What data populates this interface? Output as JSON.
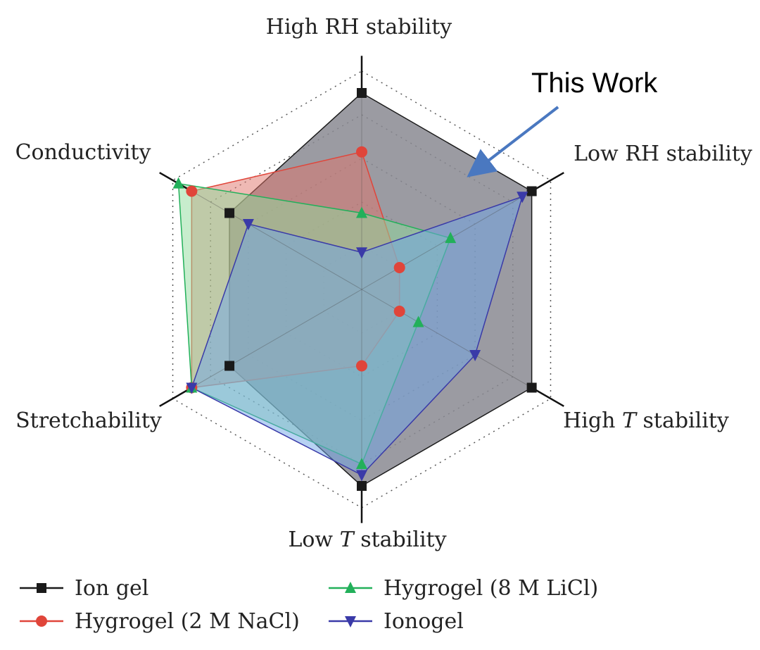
{
  "chart_data": {
    "type": "radar",
    "annotation": "This Work",
    "axes": [
      {
        "key": "rh_high",
        "label": "High RH stability",
        "italic": ""
      },
      {
        "key": "rh_low",
        "label": "Low RH stability",
        "italic": ""
      },
      {
        "key": "t_high",
        "label": "High ",
        "italic": "T",
        "suffix": " stability"
      },
      {
        "key": "t_low",
        "label": "Low ",
        "italic": "T",
        "suffix": " stability"
      },
      {
        "key": "stretch",
        "label": "Stretchability",
        "italic": ""
      },
      {
        "key": "cond",
        "label": "Conductivity",
        "italic": ""
      }
    ],
    "scale": [
      0,
      1
    ],
    "rings": 5,
    "series": [
      {
        "name": "Ion gel",
        "color": "#1a1a1a",
        "fill": "#8a8a92",
        "marker": "square",
        "values": [
          0.9,
          0.9,
          0.9,
          0.9,
          0.7,
          0.7
        ]
      },
      {
        "name": "Hygrogel (2 M NaCl)",
        "color": "#e0453a",
        "fill": "#e0736a",
        "marker": "circle",
        "values": [
          0.63,
          0.2,
          0.2,
          0.35,
          0.9,
          0.9
        ]
      },
      {
        "name": "Hygrogel (8 M LiCl)",
        "color": "#22b05a",
        "fill": "#8fdc9c",
        "marker": "triangle-up",
        "values": [
          0.35,
          0.47,
          0.3,
          0.8,
          0.9,
          0.97
        ]
      },
      {
        "name": "Ionogel",
        "color": "#3a3aa8",
        "fill": "#6fa6e8",
        "marker": "triangle-down",
        "values": [
          0.17,
          0.85,
          0.6,
          0.85,
          0.9,
          0.6
        ]
      }
    ],
    "legend": {
      "position": "bottom",
      "columns": 2
    }
  }
}
